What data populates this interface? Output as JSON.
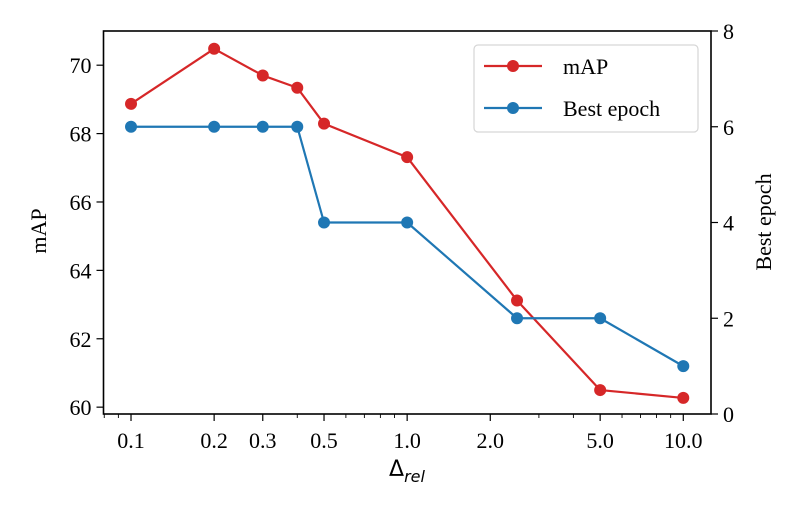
{
  "chart_data": {
    "type": "line",
    "title": "",
    "xlabel": "Δ",
    "xlabel_subscript": "rel",
    "ylabel": "mAP",
    "y2label": "Best epoch",
    "xscale": "log",
    "x": [
      0.1,
      0.2,
      0.3,
      0.4,
      0.5,
      1.0,
      2.5,
      5.0,
      10.0
    ],
    "xlim": [
      0.0795,
      12.6
    ],
    "xticks": [
      0.1,
      0.2,
      0.3,
      0.5,
      1.0,
      2.0,
      5.0,
      10.0
    ],
    "xtick_labels": [
      "0.1",
      "0.2",
      "0.3",
      "0.5",
      "1.0",
      "2.0",
      "5.0",
      "10.0"
    ],
    "ylim": [
      59.8,
      71.0
    ],
    "yticks": [
      60,
      62,
      64,
      66,
      68,
      70
    ],
    "ytick_labels": [
      "60",
      "62",
      "64",
      "66",
      "68",
      "70"
    ],
    "y2lim": [
      0,
      8
    ],
    "y2ticks": [
      0,
      2,
      4,
      6,
      8
    ],
    "y2tick_labels": [
      "0",
      "2",
      "4",
      "6",
      "8"
    ],
    "grid": false,
    "legend_position": "top-right",
    "series": [
      {
        "name": "mAP",
        "axis": "left",
        "color": "#d62728",
        "values": [
          68.87,
          70.48,
          69.7,
          69.34,
          68.29,
          67.31,
          63.12,
          60.5,
          60.27
        ]
      },
      {
        "name": "Best epoch",
        "axis": "right",
        "color": "#1f77b4",
        "values": [
          6,
          6,
          6,
          6,
          4,
          4,
          2,
          2,
          1
        ]
      }
    ]
  }
}
